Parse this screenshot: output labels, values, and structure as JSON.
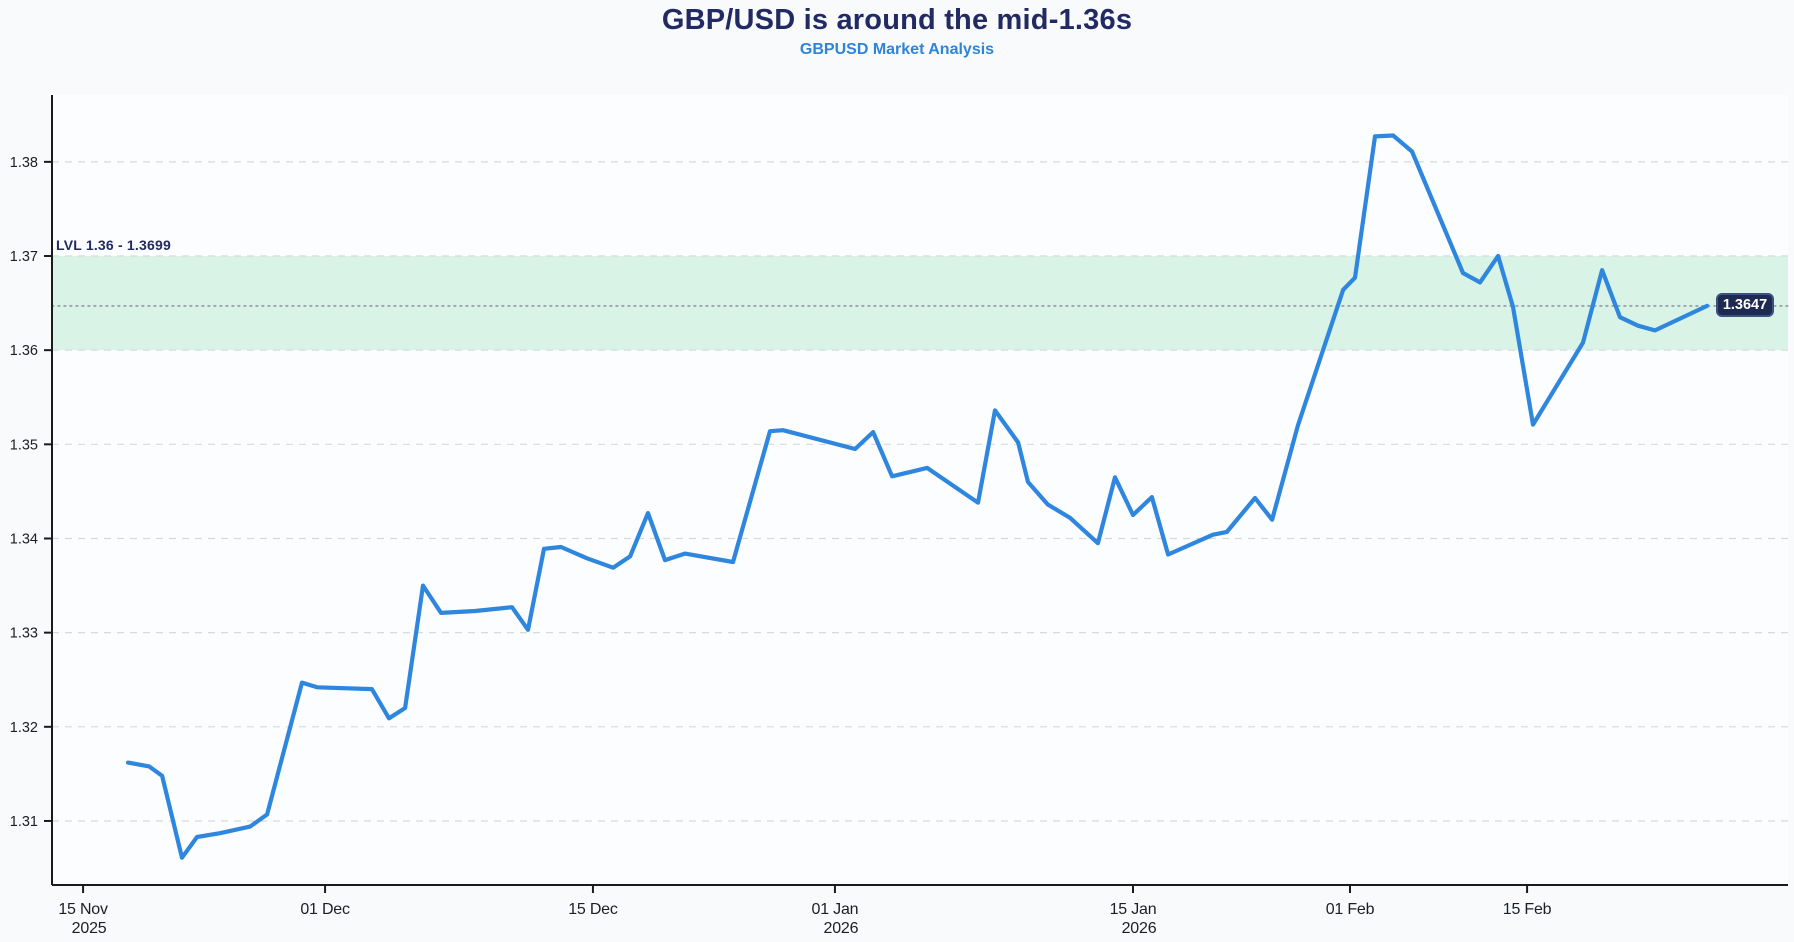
{
  "header": {
    "title": "GBP/USD is around the mid-1.36s",
    "subtitle": "GBPUSD Market Analysis"
  },
  "colors": {
    "background": "#f8fafc",
    "plot_background": "#fcfdfe",
    "title": "#222a63",
    "subtitle": "#2e85d8",
    "line": "#2e86de",
    "band_fill": "#d9f3e6",
    "grid": "#d6dade",
    "dotted_level": "#8f9aa3",
    "axis": "#1a1b1e",
    "tick_text": "#1b1e24",
    "badge_bg": "#1d2a52",
    "badge_border": "#3d5080",
    "badge_text": "#ffffff"
  },
  "chart_data": {
    "type": "line",
    "title": "GBP/USD is around the mid-1.36s",
    "subtitle": "GBPUSD Market Analysis",
    "xlabel": "",
    "ylabel": "",
    "grid": "horizontal-dashed",
    "legend": "none",
    "ylim": [
      1.3032,
      1.3871
    ],
    "yticks": [
      1.31,
      1.32,
      1.33,
      1.34,
      1.35,
      1.36,
      1.37,
      1.38
    ],
    "xticks": [
      {
        "label": "15 Nov",
        "sublabel": "2025",
        "xf": 0.0179
      },
      {
        "label": "01 Dec",
        "sublabel": "",
        "xf": 0.1573
      },
      {
        "label": "15 Dec",
        "sublabel": "",
        "xf": 0.3116
      },
      {
        "label": "01 Jan",
        "sublabel": "2026",
        "xf": 0.451
      },
      {
        "label": "15 Jan",
        "sublabel": "2026",
        "xf": 0.6227
      },
      {
        "label": "01 Feb",
        "sublabel": "",
        "xf": 0.7477
      },
      {
        "label": "15 Feb",
        "sublabel": "",
        "xf": 0.8497
      }
    ],
    "band": {
      "from": 1.36,
      "to": 1.37,
      "label": "LVL 1.36 - 1.3699"
    },
    "current_level": {
      "value": 1.3647,
      "label": "1.3647"
    },
    "series": [
      {
        "name": "GBPUSD",
        "points": [
          [
            0.0438,
            1.3162
          ],
          [
            0.056,
            1.3158
          ],
          [
            0.0634,
            1.3148
          ],
          [
            0.0749,
            1.3061
          ],
          [
            0.0835,
            1.3083
          ],
          [
            0.0968,
            1.3087
          ],
          [
            0.1141,
            1.3094
          ],
          [
            0.1239,
            1.3107
          ],
          [
            0.144,
            1.3247
          ],
          [
            0.1527,
            1.3242
          ],
          [
            0.1843,
            1.324
          ],
          [
            0.1941,
            1.3209
          ],
          [
            0.2034,
            1.322
          ],
          [
            0.2137,
            1.335
          ],
          [
            0.2241,
            1.3321
          ],
          [
            0.2437,
            1.3323
          ],
          [
            0.265,
            1.3327
          ],
          [
            0.2742,
            1.3303
          ],
          [
            0.2834,
            1.3389
          ],
          [
            0.2932,
            1.3391
          ],
          [
            0.3082,
            1.3379
          ],
          [
            0.3232,
            1.3369
          ],
          [
            0.333,
            1.3381
          ],
          [
            0.3433,
            1.3427
          ],
          [
            0.3531,
            1.3377
          ],
          [
            0.3646,
            1.3384
          ],
          [
            0.3923,
            1.3375
          ],
          [
            0.4136,
            1.3514
          ],
          [
            0.4211,
            1.3515
          ],
          [
            0.4626,
            1.3495
          ],
          [
            0.473,
            1.3513
          ],
          [
            0.4839,
            1.3466
          ],
          [
            0.5041,
            1.3475
          ],
          [
            0.5334,
            1.3438
          ],
          [
            0.5432,
            1.3536
          ],
          [
            0.5565,
            1.3502
          ],
          [
            0.5622,
            1.346
          ],
          [
            0.5737,
            1.3436
          ],
          [
            0.5864,
            1.3422
          ],
          [
            0.6025,
            1.3395
          ],
          [
            0.6123,
            1.3465
          ],
          [
            0.6227,
            1.3425
          ],
          [
            0.6336,
            1.3444
          ],
          [
            0.6429,
            1.3383
          ],
          [
            0.6688,
            1.3404
          ],
          [
            0.6768,
            1.3407
          ],
          [
            0.693,
            1.3443
          ],
          [
            0.7028,
            1.342
          ],
          [
            0.7177,
            1.352
          ],
          [
            0.7437,
            1.3664
          ],
          [
            0.7506,
            1.3677
          ],
          [
            0.7621,
            1.3827
          ],
          [
            0.7725,
            1.3828
          ],
          [
            0.7834,
            1.3811
          ],
          [
            0.8128,
            1.3682
          ],
          [
            0.8226,
            1.3672
          ],
          [
            0.833,
            1.37
          ],
          [
            0.8416,
            1.3646
          ],
          [
            0.8531,
            1.3521
          ],
          [
            0.8819,
            1.3608
          ],
          [
            0.8929,
            1.3685
          ],
          [
            0.9032,
            1.3635
          ],
          [
            0.9136,
            1.3626
          ],
          [
            0.9234,
            1.3621
          ],
          [
            0.9534,
            1.3647
          ]
        ]
      }
    ]
  }
}
